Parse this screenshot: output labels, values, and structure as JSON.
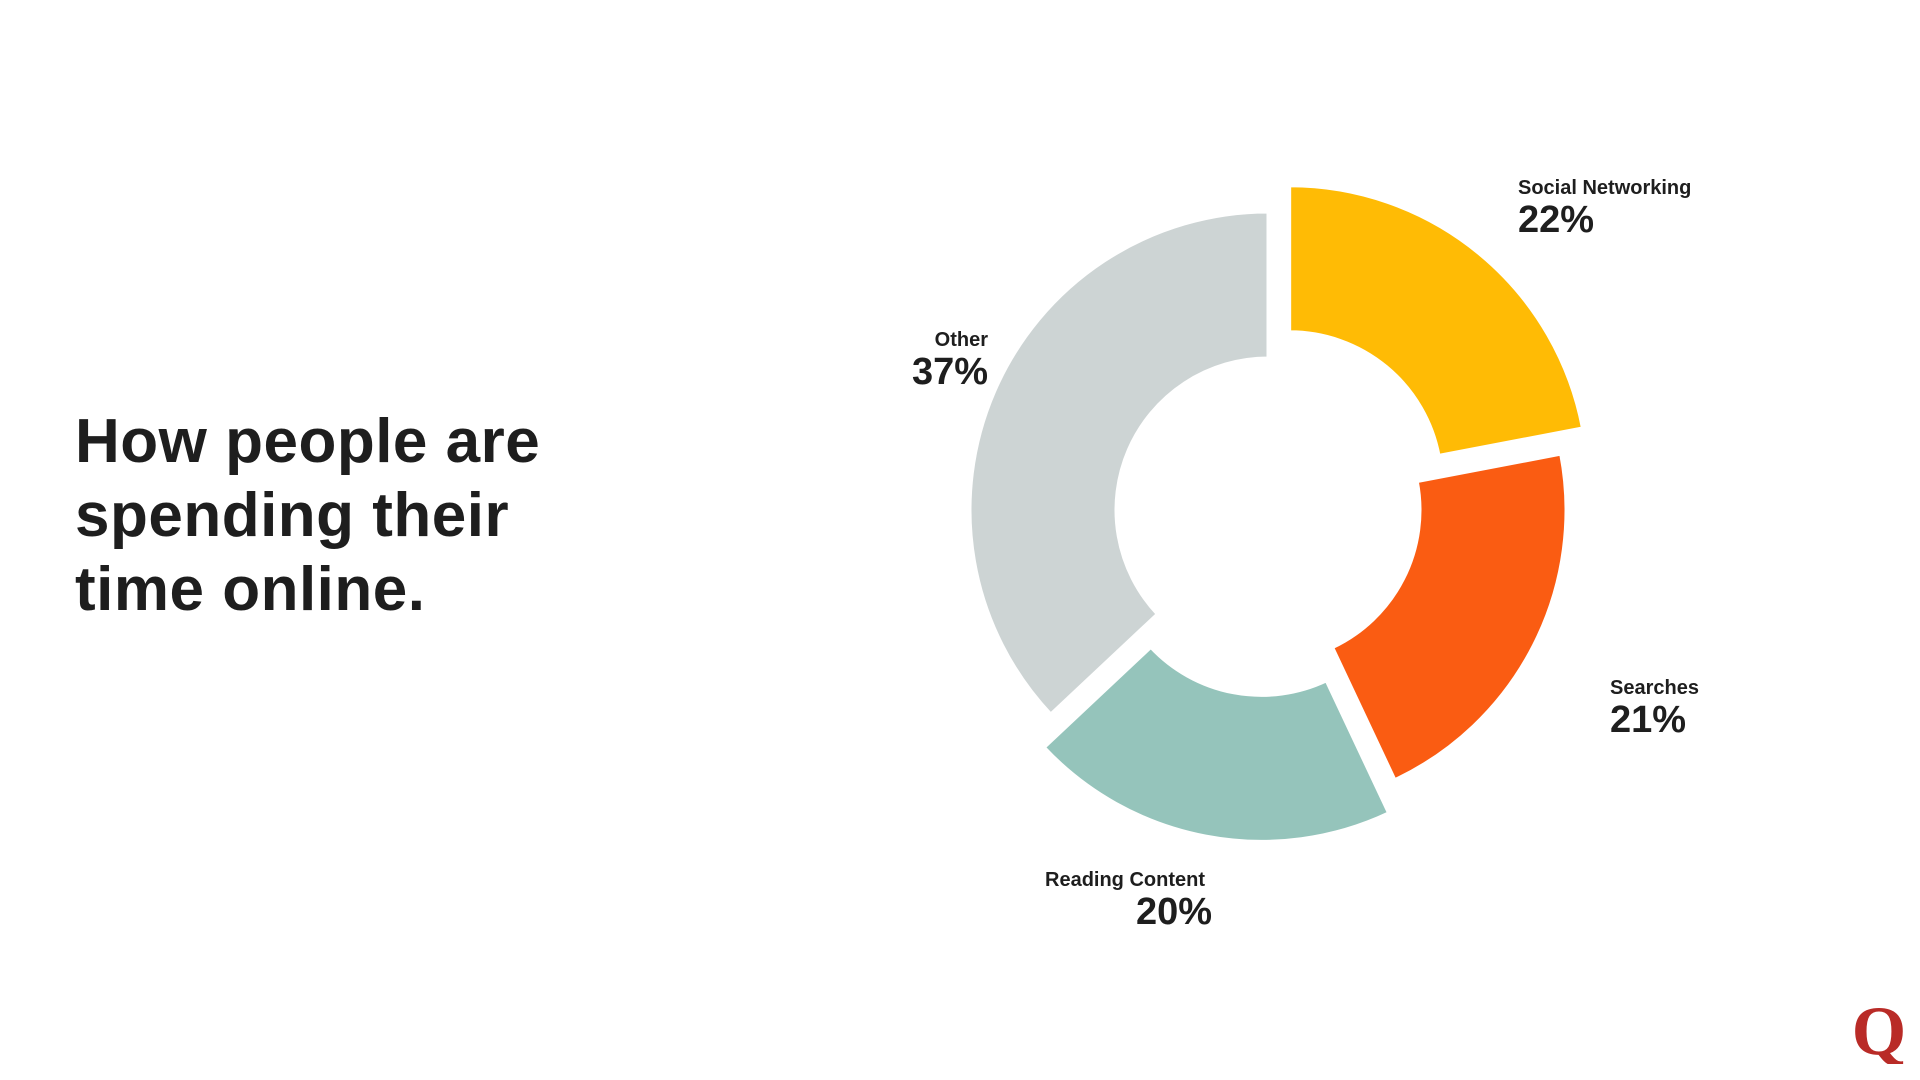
{
  "title": "How people are\nspending their\ntime online.",
  "logo_letter": "Q",
  "colors": {
    "logo": "#b92b27",
    "text": "#1e1e1e"
  },
  "chart_data": {
    "type": "pie",
    "donut": true,
    "title": "",
    "categories": [
      "Social Networking",
      "Searches",
      "Reading Content",
      "Other"
    ],
    "values": [
      22,
      21,
      20,
      37
    ],
    "labels": [
      "22%",
      "21%",
      "20%",
      "37%"
    ],
    "colors": [
      "#ffbb05",
      "#fa5c12",
      "#95c4bb",
      "#cdd4d4"
    ],
    "exploded": [
      "Social Networking",
      "Reading Content"
    ],
    "start_angle": "12 o'clock, clockwise"
  }
}
